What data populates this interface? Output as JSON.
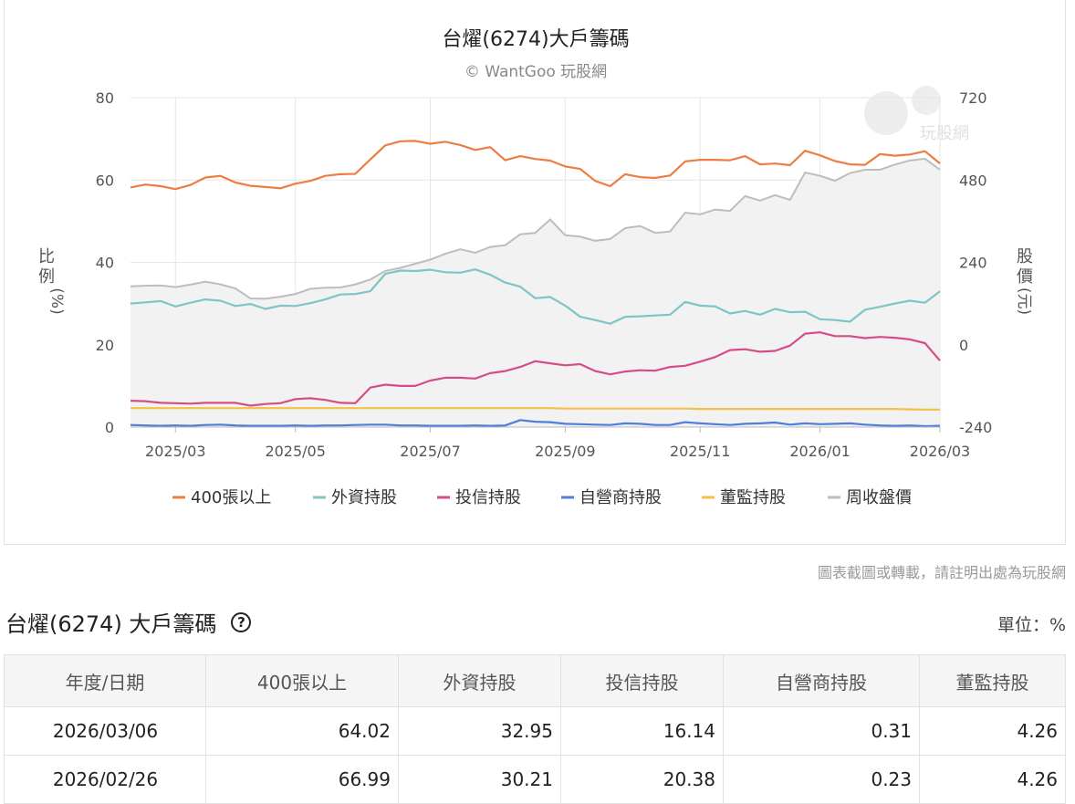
{
  "chart": {
    "title": "台燿(6274)大戶籌碼",
    "credit": "© WantGoo 玩股網",
    "watermark_text": "玩股網",
    "notice": "圖表截圖或轉載，請註明出處為玩股網"
  },
  "chart_data": {
    "type": "line",
    "title": "台燿(6274)大戶籌碼",
    "subtitle": "© WantGoo 玩股網",
    "ylabel_left": "比例(%)",
    "ylabel_right": "股價(元)",
    "ylim_left": [
      0,
      80
    ],
    "ylim_right": [
      -240,
      720
    ],
    "yticks_left": [
      "80",
      "60",
      "40",
      "20",
      "0"
    ],
    "yticks_right": [
      "720",
      "480",
      "240",
      "0",
      "-240"
    ],
    "grid": true,
    "legend_position": "bottom",
    "x": [
      "2025/02/14",
      "2025/02/21",
      "2025/02/27",
      "2025/03/07",
      "2025/03/14",
      "2025/03/21",
      "2025/03/28",
      "2025/04/04",
      "2025/04/11",
      "2025/04/18",
      "2025/04/25",
      "2025/05/02",
      "2025/05/09",
      "2025/05/16",
      "2025/05/23",
      "2025/05/30",
      "2025/06/06",
      "2025/06/13",
      "2025/06/20",
      "2025/06/27",
      "2025/07/04",
      "2025/07/11",
      "2025/07/18",
      "2025/07/25",
      "2025/08/01",
      "2025/08/08",
      "2025/08/15",
      "2025/08/22",
      "2025/08/29",
      "2025/09/05",
      "2025/09/12",
      "2025/09/19",
      "2025/09/26",
      "2025/10/03",
      "2025/10/10",
      "2025/10/17",
      "2025/10/24",
      "2025/10/31",
      "2025/11/07",
      "2025/11/14",
      "2025/11/21",
      "2025/11/28",
      "2025/12/05",
      "2025/12/12",
      "2025/12/19",
      "2025/12/26",
      "2026/01/02",
      "2026/01/09",
      "2026/01/16",
      "2026/01/23",
      "2026/01/30",
      "2026/02/06",
      "2026/02/13",
      "2026/02/26",
      "2026/03/06"
    ],
    "x_ticks": [
      "2025/03",
      "2025/05",
      "2025/07",
      "2025/09",
      "2025/11",
      "2026/01",
      "2026/03"
    ],
    "series": [
      {
        "name": "400張以上",
        "axis": "left",
        "color": "#ed7d44",
        "values": [
          58.2,
          58.9,
          58.5,
          57.8,
          58.8,
          60.6,
          61.0,
          59.4,
          58.6,
          58.3,
          58.0,
          59.1,
          59.8,
          61.0,
          61.4,
          61.5,
          65.0,
          68.4,
          69.4,
          69.5,
          68.8,
          69.3,
          68.5,
          67.3,
          68.0,
          64.8,
          65.8,
          65.1,
          64.7,
          63.3,
          62.7,
          59.8,
          58.5,
          61.4,
          60.7,
          60.5,
          61.1,
          64.5,
          64.9,
          64.9,
          64.8,
          65.8,
          63.8,
          64.0,
          63.6,
          67.1,
          66.0,
          64.6,
          63.8,
          63.7,
          66.3,
          65.9,
          66.2,
          66.99,
          64.02
        ]
      },
      {
        "name": "外資持股",
        "axis": "left",
        "color": "#7ec5c5",
        "values": [
          30.0,
          30.3,
          30.6,
          29.3,
          30.2,
          31.0,
          30.7,
          29.4,
          29.9,
          28.7,
          29.5,
          29.4,
          30.1,
          31.0,
          32.2,
          32.3,
          33.0,
          37.2,
          38.0,
          37.9,
          38.2,
          37.6,
          37.5,
          38.3,
          37.0,
          35.1,
          34.1,
          31.3,
          31.6,
          29.5,
          26.8,
          26.0,
          25.1,
          26.8,
          26.9,
          27.1,
          27.3,
          30.4,
          29.5,
          29.3,
          27.6,
          28.2,
          27.3,
          28.7,
          27.9,
          28.0,
          26.2,
          26.0,
          25.6,
          28.5,
          29.2,
          30.0,
          30.7,
          30.21,
          32.95
        ]
      },
      {
        "name": "投信持股",
        "axis": "left",
        "color": "#d44d8a",
        "values": [
          6.4,
          6.3,
          5.9,
          5.8,
          5.7,
          5.9,
          5.9,
          5.9,
          5.2,
          5.6,
          5.8,
          6.8,
          7.0,
          6.6,
          5.9,
          5.8,
          9.6,
          10.3,
          10.0,
          10.0,
          11.3,
          12.0,
          12.0,
          11.8,
          13.1,
          13.6,
          14.6,
          16.0,
          15.5,
          15.0,
          15.3,
          13.6,
          12.8,
          13.5,
          13.8,
          13.7,
          14.6,
          14.9,
          15.9,
          17.0,
          18.7,
          18.9,
          18.3,
          18.5,
          19.8,
          22.7,
          23.0,
          22.1,
          22.1,
          21.6,
          21.9,
          21.7,
          21.3,
          20.38,
          16.14
        ]
      },
      {
        "name": "自營商持股",
        "axis": "left",
        "color": "#4e7ddc",
        "values": [
          0.5,
          0.4,
          0.3,
          0.4,
          0.3,
          0.5,
          0.6,
          0.4,
          0.3,
          0.3,
          0.3,
          0.4,
          0.3,
          0.4,
          0.4,
          0.5,
          0.6,
          0.6,
          0.4,
          0.4,
          0.3,
          0.3,
          0.3,
          0.4,
          0.3,
          0.4,
          1.7,
          1.3,
          1.2,
          0.8,
          0.7,
          0.6,
          0.5,
          0.9,
          0.8,
          0.5,
          0.5,
          1.2,
          0.9,
          0.7,
          0.5,
          0.8,
          0.9,
          1.1,
          0.6,
          0.9,
          0.7,
          0.8,
          0.9,
          0.6,
          0.4,
          0.3,
          0.4,
          0.23,
          0.31
        ]
      },
      {
        "name": "董監持股",
        "axis": "left",
        "color": "#f4c049",
        "values": [
          4.6,
          4.6,
          4.6,
          4.6,
          4.6,
          4.6,
          4.6,
          4.6,
          4.6,
          4.6,
          4.6,
          4.6,
          4.6,
          4.6,
          4.6,
          4.6,
          4.6,
          4.6,
          4.6,
          4.6,
          4.6,
          4.6,
          4.6,
          4.6,
          4.6,
          4.6,
          4.6,
          4.6,
          4.6,
          4.5,
          4.5,
          4.5,
          4.5,
          4.5,
          4.5,
          4.5,
          4.5,
          4.5,
          4.4,
          4.4,
          4.4,
          4.4,
          4.4,
          4.4,
          4.4,
          4.4,
          4.4,
          4.4,
          4.4,
          4.4,
          4.4,
          4.4,
          4.3,
          4.26,
          4.26
        ]
      },
      {
        "name": "周收盤價",
        "axis": "right",
        "color": "#bdbdbd",
        "area": true,
        "values": [
          170,
          172,
          173,
          168,
          175,
          184,
          176,
          164,
          135,
          134,
          140,
          148,
          163,
          166,
          167,
          176,
          190,
          215,
          224,
          236,
          248,
          265,
          278,
          268,
          285,
          290,
          322,
          326,
          365,
          319,
          315,
          303,
          308,
          340,
          346,
          326,
          330,
          385,
          380,
          394,
          390,
          433,
          420,
          436,
          422,
          502,
          492,
          478,
          500,
          510,
          510,
          525,
          537,
          542,
          510
        ]
      }
    ]
  },
  "table": {
    "title": "台燿(6274) 大戶籌碼",
    "unit": "單位：%",
    "headers": [
      "年度/日期",
      "400張以上",
      "外資持股",
      "投信持股",
      "自營商持股",
      "董監持股"
    ],
    "rows": [
      [
        "2026/03/06",
        "64.02",
        "32.95",
        "16.14",
        "0.31",
        "4.26"
      ],
      [
        "2026/02/26",
        "66.99",
        "30.21",
        "20.38",
        "0.23",
        "4.26"
      ]
    ]
  }
}
